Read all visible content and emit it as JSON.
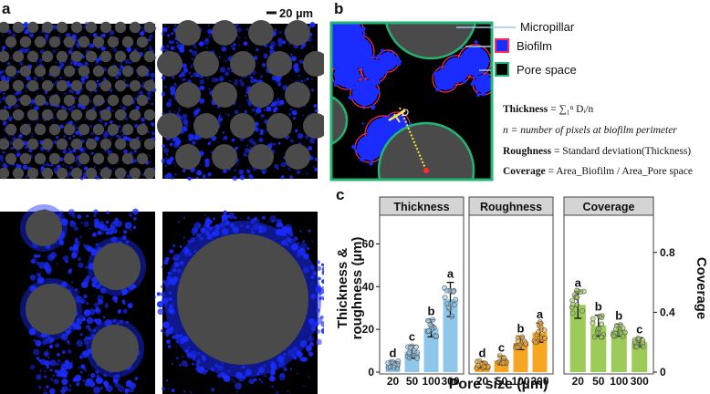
{
  "panel_labels": {
    "a": "a",
    "b": "b",
    "c": "c"
  },
  "scalebar": {
    "label": "20 µm"
  },
  "legend_b": {
    "micropillar": "Micropillar",
    "biofilm": "Biofilm",
    "pore_space": "Pore space",
    "diagram_D_label": "D",
    "diagram_i_label": "i"
  },
  "equations": {
    "thickness_label": "Thickness",
    "thickness_rhs": "= ∑₁ⁿ Dᵢ/n",
    "n_def": "n = number of pixels at biofilm perimeter",
    "roughness_label": "Roughness",
    "roughness_rhs": "= Standard deviation(Thickness)",
    "coverage_label": "Coverage",
    "coverage_rhs": "= Area_Biofilm / Area_Pore space"
  },
  "colors": {
    "thickness": "#8fc7ea",
    "roughness": "#f6a623",
    "coverage": "#9ccb59",
    "biofilm": "#1a2cff",
    "pillar": "#4a4a4a",
    "pore_outline": "#22b573",
    "biofilm_outline": "#ff2a55",
    "yellow": "#ffe43a"
  },
  "chart_data": [
    {
      "type": "bar",
      "title": "Thickness",
      "categories": [
        "20",
        "50",
        "100",
        "300"
      ],
      "values": [
        3.5,
        9.5,
        20.5,
        34
      ],
      "errors": [
        1.5,
        3,
        4,
        8
      ],
      "letters": [
        "d",
        "c",
        "b",
        "a"
      ],
      "ylim": [
        0,
        70
      ],
      "yticks": [
        0,
        20,
        40,
        60
      ]
    },
    {
      "type": "bar",
      "title": "Roughness",
      "categories": [
        "20",
        "50",
        "100",
        "300"
      ],
      "values": [
        3.5,
        5.5,
        13.5,
        18.5
      ],
      "errors": [
        1.5,
        2,
        3,
        4.5
      ],
      "letters": [
        "d",
        "c",
        "b",
        "a"
      ],
      "ylim": [
        0,
        70
      ]
    },
    {
      "type": "bar",
      "title": "Coverage",
      "categories": [
        "20",
        "50",
        "100",
        "300"
      ],
      "values": [
        0.45,
        0.31,
        0.28,
        0.2
      ],
      "errors": [
        0.09,
        0.07,
        0.04,
        0.03
      ],
      "letters": [
        "a",
        "b",
        "b",
        "c"
      ],
      "ylim": [
        0,
        1
      ],
      "yticks": [
        0,
        0.4,
        0.8
      ],
      "ytick_labels": [
        "0",
        "0.4",
        "0.8"
      ]
    }
  ],
  "axes": {
    "ylabel_left_line1": "Thickness &",
    "ylabel_left_line2": "roughness (µm)",
    "ylabel_right": "Coverage",
    "xlabel": "Pore size (µm)"
  }
}
